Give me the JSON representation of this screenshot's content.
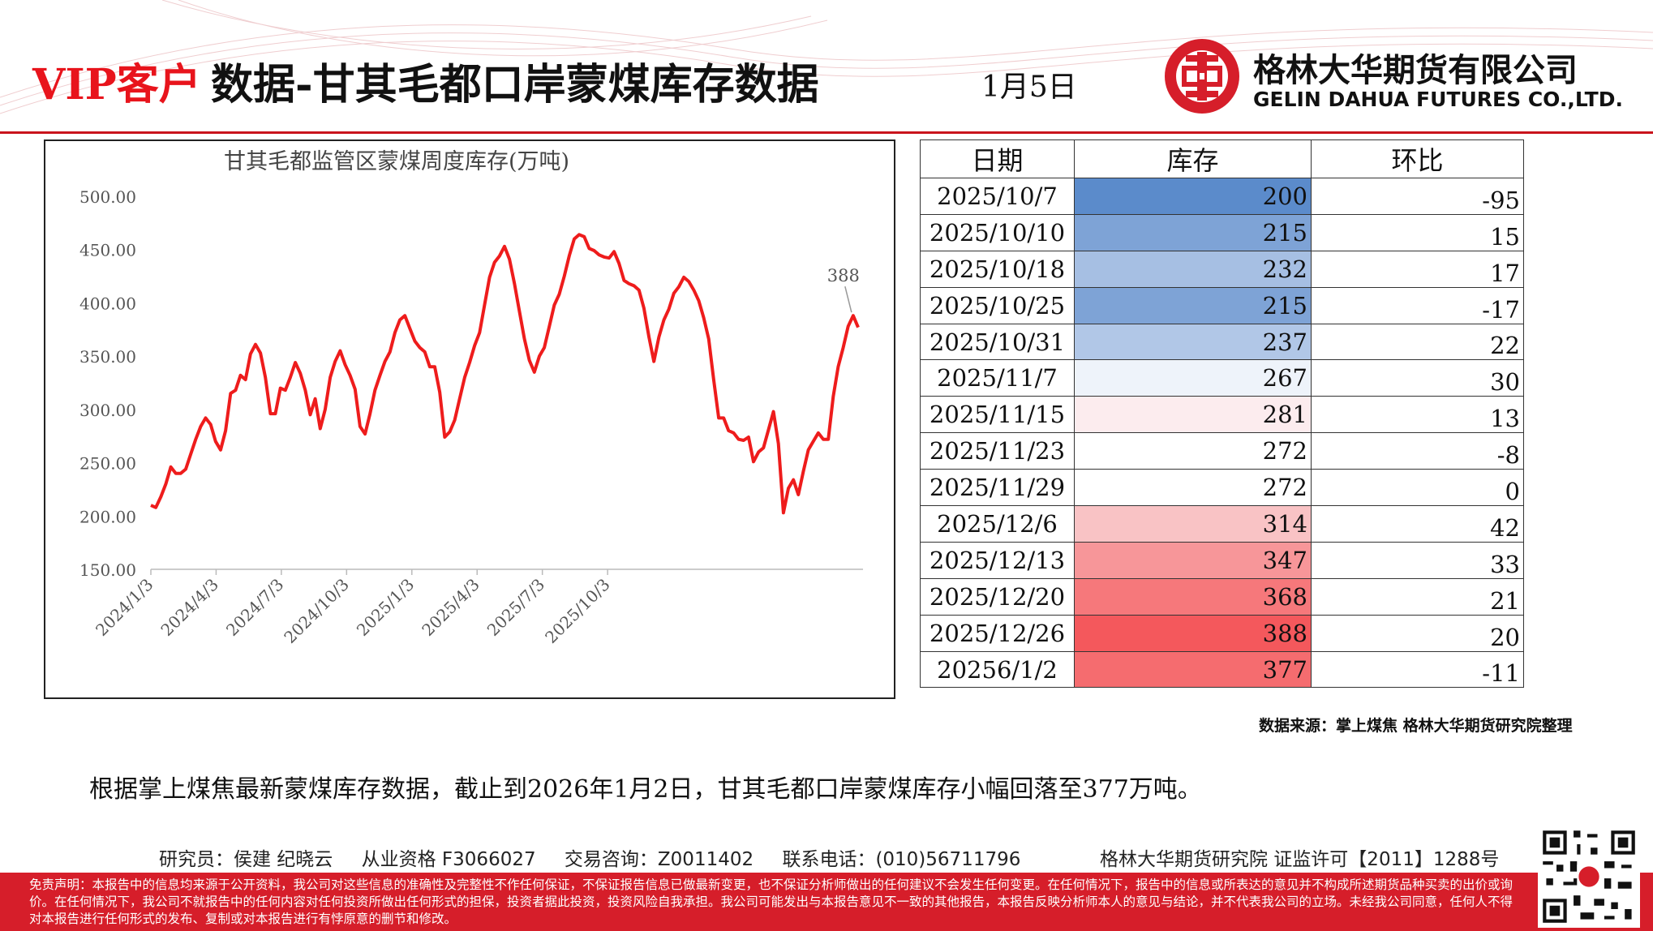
{
  "header": {
    "vip_label": "VIP客户",
    "title": "数据-甘其毛都口岸蒙煤库存数据",
    "date": "1月5日",
    "company_cn": "格林大华期货有限公司",
    "company_en": "GELIN DAHUA FUTURES CO.,LTD.",
    "accent_color": "#e8141c"
  },
  "chart_data": {
    "type": "line",
    "title": "甘其毛都监管区蒙煤周度库存(万吨)",
    "ylim": [
      150,
      500
    ],
    "y_ticks": [
      "500.00",
      "450.00",
      "400.00",
      "350.00",
      "300.00",
      "250.00",
      "200.00",
      "150.00"
    ],
    "x_ticks": [
      "2024/1/3",
      "2024/4/3",
      "2024/7/3",
      "2024/10/3",
      "2025/1/3",
      "2025/4/3",
      "2025/7/3",
      "2025/10/3"
    ],
    "annotation": "388",
    "series": [
      {
        "color": "#ee1c1c",
        "values": [
          210,
          208,
          218,
          230,
          246,
          240,
          240,
          244,
          258,
          272,
          284,
          292,
          286,
          270,
          262,
          280,
          315,
          318,
          332,
          328,
          352,
          361,
          353,
          330,
          296,
          296,
          320,
          318,
          330,
          344,
          334,
          318,
          295,
          310,
          282,
          300,
          330,
          345,
          355,
          342,
          332,
          319,
          284,
          277,
          296,
          318,
          332,
          345,
          354,
          372,
          384,
          388,
          376,
          364,
          358,
          354,
          340,
          340,
          316,
          274,
          279,
          290,
          310,
          330,
          344,
          360,
          372,
          398,
          424,
          438,
          444,
          453,
          441,
          418,
          392,
          366,
          346,
          335,
          350,
          358,
          378,
          398,
          408,
          425,
          444,
          460,
          464,
          462,
          451,
          449,
          445,
          443,
          442,
          448,
          437,
          421,
          418,
          416,
          412,
          395,
          368,
          345,
          368,
          384,
          394,
          409,
          415,
          424,
          420,
          412,
          402,
          386,
          366,
          328,
          292,
          292,
          280,
          278,
          272,
          271,
          274,
          251,
          260,
          264,
          281,
          298,
          268,
          203,
          226,
          234,
          220,
          242,
          262,
          270,
          278,
          272,
          272,
          312,
          340,
          358,
          378,
          388,
          377
        ]
      }
    ]
  },
  "table": {
    "headers": [
      "日期",
      "库存",
      "环比"
    ],
    "rows": [
      {
        "date": "2025/10/7",
        "stock": "200",
        "change": "-95",
        "color": "#5b8bcb"
      },
      {
        "date": "2025/10/10",
        "stock": "215",
        "change": "15",
        "color": "#7ea3d6"
      },
      {
        "date": "2025/10/18",
        "stock": "232",
        "change": "17",
        "color": "#a6bfe3"
      },
      {
        "date": "2025/10/25",
        "stock": "215",
        "change": "-17",
        "color": "#7ea3d6"
      },
      {
        "date": "2025/10/31",
        "stock": "237",
        "change": "22",
        "color": "#b1c7e7"
      },
      {
        "date": "2025/11/7",
        "stock": "267",
        "change": "30",
        "color": "#eef3fa"
      },
      {
        "date": "2025/11/15",
        "stock": "281",
        "change": "13",
        "color": "#fcecee"
      },
      {
        "date": "2025/11/23",
        "stock": "272",
        "change": "-8",
        "color": "#ffffff"
      },
      {
        "date": "2025/11/29",
        "stock": "272",
        "change": "0",
        "color": "#ffffff"
      },
      {
        "date": "2025/12/6",
        "stock": "314",
        "change": "42",
        "color": "#f9c3c5"
      },
      {
        "date": "2025/12/13",
        "stock": "347",
        "change": "33",
        "color": "#f79699"
      },
      {
        "date": "2025/12/20",
        "stock": "368",
        "change": "21",
        "color": "#f6787b"
      },
      {
        "date": "2025/12/26",
        "stock": "388",
        "change": "20",
        "color": "#f4585c"
      },
      {
        "date": "20256/1/2",
        "stock": "377",
        "change": "-11",
        "color": "#f56c6f"
      }
    ]
  },
  "source": "数据来源：掌上煤焦 格林大华期货研究院整理",
  "summary": "根据掌上煤焦最新蒙煤库存数据，截止到2026年1月2日，甘其毛都口岸蒙煤库存小幅回落至377万吨。",
  "footer": {
    "researcher": "研究员：侯建 纪晓云",
    "qualification": "从业资格 F3066027",
    "trading": "交易咨询：Z0011402",
    "phone": "联系电话：(010)56711796",
    "institute": "格林大华期货研究院 证监许可【2011】1288号",
    "disclaimer": "免责声明：本报告中的信息均来源于公开资料，我公司对这些信息的准确性及完整性不作任何保证，不保证报告信息已做最新变更，也不保证分析师做出的任何建议不会发生任何变更。在任何情况下，报告中的信息或所表达的意见并不构成所述期货品种买卖的出价或询价。在任何情况下，我公司不就报告中的任何内容对任何投资所做出任何形式的担保，投资者据此投资，投资风险自我承担。我公司可能发出与本报告意见不一致的其他报告，本报告反映分析师本人的意见与结论，并不代表我公司的立场。未经我公司同意，任何人不得对本报告进行任何形式的发布、复制或对本报告进行有悖原意的删节和修改。"
  }
}
